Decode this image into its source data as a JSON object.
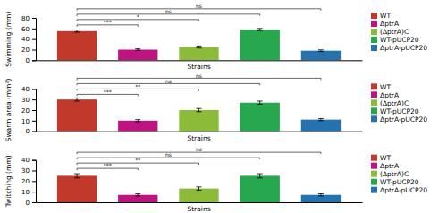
{
  "chart_data": [
    {
      "type": "bar",
      "xlabel": "Strains",
      "ylabel": "Swimming (mm)",
      "categories": [
        "WT",
        "ΔptrA",
        "(ΔptrA)C",
        "WT-pUCP20",
        "ΔptrA-pUCP20"
      ],
      "values": [
        55,
        20,
        25,
        58,
        18
      ],
      "errors": [
        2,
        1.5,
        2,
        2,
        1.5
      ],
      "colors": [
        "#C0392B",
        "#BE1482",
        "#8CBB3A",
        "#27A84E",
        "#2472AE"
      ],
      "ylim": [
        0,
        80
      ],
      "yticks": [
        0,
        20,
        40,
        60,
        80
      ],
      "grid": false,
      "legend": "right",
      "tick_labels": "y",
      "annotations": [
        {
          "from": "WT",
          "to": "ΔptrA",
          "text": "***"
        },
        {
          "from": "WT",
          "to": "(ΔptrA)C",
          "text": "*"
        },
        {
          "from": "WT",
          "to": "WT-pUCP20",
          "text": "ns"
        },
        {
          "from": "WT",
          "to": "ΔptrA-pUCP20",
          "text": "ns"
        }
      ]
    },
    {
      "type": "bar",
      "xlabel": "Strains",
      "ylabel": "Swarm area (mm²)",
      "categories": [
        "WT",
        "ΔptrA",
        "(ΔptrA)C",
        "WT-pUCP20",
        "ΔptrA-pUCP20"
      ],
      "values": [
        30,
        10,
        20,
        27,
        11
      ],
      "errors": [
        1.5,
        1,
        1.5,
        1.5,
        1
      ],
      "colors": [
        "#C0392B",
        "#BE1482",
        "#8CBB3A",
        "#27A84E",
        "#2472AE"
      ],
      "ylim": [
        0,
        40
      ],
      "yticks": [
        0,
        10,
        20,
        30,
        40
      ],
      "grid": false,
      "legend": "right",
      "tick_labels": "y",
      "annotations": [
        {
          "from": "WT",
          "to": "ΔptrA",
          "text": "***"
        },
        {
          "from": "WT",
          "to": "(ΔptrA)C",
          "text": "**"
        },
        {
          "from": "WT",
          "to": "WT-pUCP20",
          "text": "ns"
        },
        {
          "from": "WT",
          "to": "ΔptrA-pUCP20",
          "text": "ns"
        }
      ]
    },
    {
      "type": "bar",
      "xlabel": "Strains",
      "ylabel": "Twitching (mm)",
      "categories": [
        "WT",
        "ΔptrA",
        "(ΔptrA)C",
        "WT-pUCP20",
        "ΔptrA-pUCP20"
      ],
      "values": [
        25,
        7,
        13,
        25,
        7
      ],
      "errors": [
        2,
        1,
        1.5,
        2,
        1
      ],
      "colors": [
        "#C0392B",
        "#BE1482",
        "#8CBB3A",
        "#27A84E",
        "#2472AE"
      ],
      "ylim": [
        0,
        40
      ],
      "yticks": [
        0,
        10,
        20,
        30,
        40
      ],
      "grid": false,
      "legend": "right",
      "tick_labels": "y",
      "annotations": [
        {
          "from": "WT",
          "to": "ΔptrA",
          "text": "***"
        },
        {
          "from": "WT",
          "to": "(ΔptrA)C",
          "text": "**"
        },
        {
          "from": "WT",
          "to": "WT-pUCP20",
          "text": "ns"
        },
        {
          "from": "WT",
          "to": "ΔptrA-pUCP20",
          "text": "ns"
        }
      ]
    }
  ]
}
